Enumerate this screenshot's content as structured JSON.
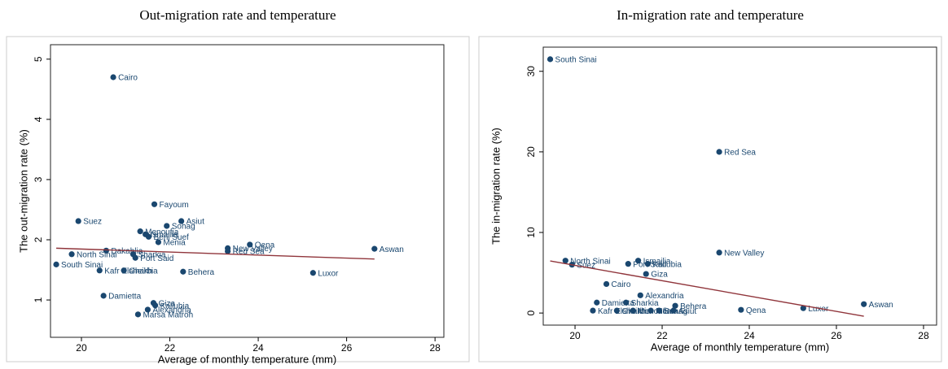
{
  "chart_data": [
    {
      "type": "scatter",
      "title": "Out-migration rate and temperature",
      "x_label": "Average of monthly temperature (mm)",
      "y_label": "The out-migration rate (%)",
      "color": "#1a476f",
      "fit_color": "#90353b",
      "xlim": [
        19.3,
        28.2
      ],
      "ylim": [
        0.38,
        5.24
      ],
      "xticks": [
        20,
        22,
        24,
        26,
        28
      ],
      "yticks": [
        1,
        2,
        3,
        4,
        5
      ],
      "labels": [
        "Cairo",
        "Fayoum",
        "Suez",
        "Asiut",
        "Sohag",
        "Menoufia",
        "Ismailia",
        "Beni Suef",
        "Menia",
        "Qena",
        "New Valley",
        "Aswan",
        "Dakahlia",
        "Red Sea",
        "North Sinai",
        "Sharkia",
        "Port Said",
        "South Sinai",
        "Kafr Elsheikh",
        "Gharbia",
        "Behera",
        "Luxor",
        "Damietta",
        "Giza",
        "Kaliubia",
        "Alexandria",
        "Marsa Matroh"
      ],
      "x": [
        20.72,
        21.65,
        19.93,
        22.26,
        21.93,
        21.33,
        21.45,
        21.52,
        21.74,
        23.81,
        23.31,
        26.63,
        20.56,
        23.31,
        19.78,
        21.17,
        21.22,
        19.43,
        20.41,
        20.96,
        22.3,
        25.24,
        20.5,
        21.63,
        21.67,
        21.5,
        21.28
      ],
      "y": [
        4.7,
        2.59,
        2.31,
        2.31,
        2.23,
        2.14,
        2.09,
        2.05,
        1.96,
        1.92,
        1.86,
        1.85,
        1.82,
        1.81,
        1.76,
        1.76,
        1.7,
        1.59,
        1.49,
        1.49,
        1.47,
        1.45,
        1.07,
        0.95,
        0.91,
        0.84,
        0.76
      ],
      "fit": {
        "x": [
          19.43,
          26.63
        ],
        "y": [
          1.86,
          1.68
        ]
      }
    },
    {
      "type": "scatter",
      "title": "In-migration rate and temperature",
      "x_label": "Average of monthly temperature (mm)",
      "y_label": "The in-migration rate (%)",
      "color": "#1a476f",
      "fit_color": "#90353b",
      "xlim": [
        19.27,
        28.3
      ],
      "ylim": [
        -1.5,
        33
      ],
      "xticks": [
        20,
        22,
        24,
        26,
        28
      ],
      "yticks": [
        0,
        10,
        20,
        30
      ],
      "labels": [
        "South Sinai",
        "Red Sea",
        "New Valley",
        "North Sinai",
        "Suez",
        "Ismailia",
        "Port Said",
        "Kaliubia",
        "Giza",
        "Cairo",
        "Alexandria",
        "Damietta",
        "Sharkia",
        "Behera",
        "Qena",
        "Luxor",
        "Aswan",
        "Kafr Elsheikh",
        "Gharbia",
        "Menoufia",
        "Menia",
        "Sohag",
        "Asiut"
      ],
      "x": [
        19.43,
        23.31,
        23.31,
        19.78,
        19.93,
        21.45,
        21.22,
        21.67,
        21.63,
        20.72,
        21.5,
        20.5,
        21.17,
        22.3,
        23.81,
        25.24,
        26.63,
        20.41,
        20.96,
        21.33,
        21.74,
        21.93,
        22.26
      ],
      "y": [
        31.5,
        20,
        7.5,
        6.5,
        6.0,
        6.5,
        6.1,
        6.1,
        4.85,
        3.6,
        2.2,
        1.3,
        1.3,
        0.9,
        0.4,
        0.6,
        1.1,
        0.3,
        0.3,
        0.3,
        0.3,
        0.3,
        0.3
      ],
      "fit": {
        "x": [
          19.43,
          26.63
        ],
        "y": [
          6.46,
          -0.4
        ]
      }
    }
  ]
}
